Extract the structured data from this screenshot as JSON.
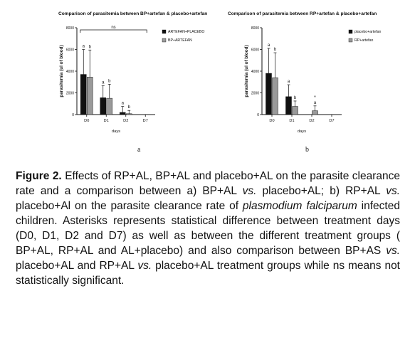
{
  "figure": {
    "panel_labels": [
      "a",
      "b"
    ],
    "caption": {
      "label": "Figure 2.",
      "parts": [
        {
          "style": "normal",
          "text": " Effects of RP+AL, BP+AL and placebo+AL on the parasite clearance rate and a comparison between a) BP+AL "
        },
        {
          "style": "italic",
          "text": "vs."
        },
        {
          "style": "normal",
          "text": " placebo+AL; b) RP+AL "
        },
        {
          "style": "italic",
          "text": "vs."
        },
        {
          "style": "normal",
          "text": " placebo+Al on the parasite clearance rate of "
        },
        {
          "style": "italic",
          "text": "plasmodium falciparum"
        },
        {
          "style": "normal",
          "text": " infected children. Asterisks represents statistical difference between treatment days (D0, D1, D2 and D7) as well as between the different treatment groups ( BP+AL, RP+AL and AL+placebo) and also comparison between BP+AS "
        },
        {
          "style": "italic",
          "text": "vs."
        },
        {
          "style": "normal",
          "text": " placebo+AL and RP+AL "
        },
        {
          "style": "italic",
          "text": "vs."
        },
        {
          "style": "normal",
          "text": " placebo+AL treatment groups while ns means not statistically significant."
        }
      ]
    }
  },
  "chart_data": [
    {
      "type": "bar",
      "title": "Comparison of parasitemia between BP+artefan & placebo+artefan",
      "xlabel": "days",
      "ylabel": "parasitemia (ul of blood)",
      "categories": [
        "D0",
        "D1",
        "D2",
        "D7"
      ],
      "yticks": [
        0,
        2000,
        4000,
        6000,
        8000
      ],
      "ylim": [
        0,
        8000
      ],
      "legend_position": "right",
      "series": [
        {
          "name": "ARTEFAN+PLACEBO",
          "color": "#111111",
          "values": [
            3700,
            1550,
            200,
            0
          ],
          "errors": [
            2300,
            1100,
            550,
            0
          ],
          "letters": [
            "a",
            "a",
            "a",
            ""
          ]
        },
        {
          "name": "BP+ARTEFAN",
          "color": "#9a9a9a",
          "values": [
            3450,
            1500,
            80,
            0
          ],
          "errors": [
            2500,
            1300,
            300,
            0
          ],
          "letters": [
            "b",
            "b",
            "b",
            ""
          ]
        }
      ],
      "annotations": [
        {
          "text": "ns",
          "from": "D0",
          "to": "D7"
        }
      ]
    },
    {
      "type": "bar",
      "title": "Comparison of parasitemia between RP+artefan & placebo+artefan",
      "xlabel": "days",
      "ylabel": "parasitemia (ul of blood)",
      "categories": [
        "D0",
        "D1",
        "D2",
        "D7"
      ],
      "yticks": [
        0,
        2000,
        4000,
        6000,
        8000
      ],
      "ylim": [
        0,
        8000
      ],
      "legend_position": "right",
      "series": [
        {
          "name": "placebo+artefan",
          "color": "#111111",
          "values": [
            3800,
            1650,
            0,
            0
          ],
          "errors": [
            2300,
            1100,
            0,
            0
          ],
          "letters": [
            "a",
            "a",
            "",
            ""
          ]
        },
        {
          "name": "RP+artefan",
          "color": "#9a9a9a",
          "values": [
            3400,
            750,
            350,
            0
          ],
          "errors": [
            2300,
            500,
            450,
            0
          ],
          "letters": [
            "b",
            "b",
            "a",
            ""
          ]
        }
      ],
      "annotations": [
        {
          "text": "*",
          "at": "D2"
        }
      ]
    }
  ]
}
